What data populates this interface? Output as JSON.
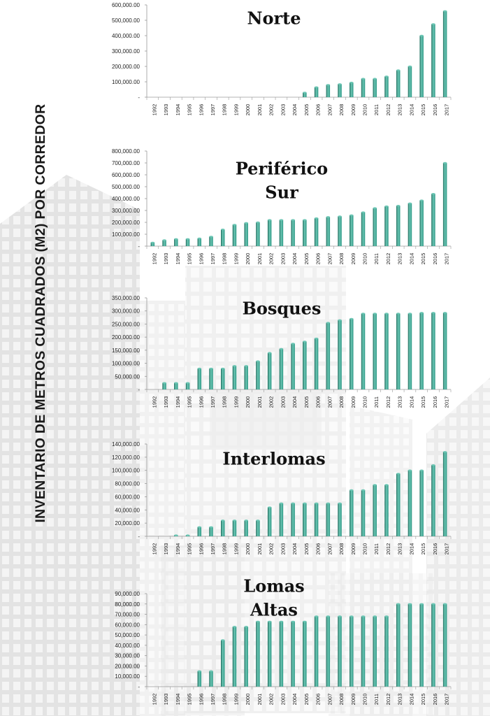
{
  "page": {
    "title": "INVENTARIO DE METROS CUADRADOS (M2) POR CORREDOR"
  },
  "colors": {
    "bar": "#2f9986",
    "bar_highlight": "#6cc6b4",
    "bar_shadow": "#1d6b5c",
    "axis": "#9a9a9a",
    "text": "#1a1a1a"
  },
  "chart_data": [
    {
      "type": "bar",
      "title": [
        "Norte"
      ],
      "categories": [
        "1992",
        "1993",
        "1994",
        "1995",
        "1996",
        "1997",
        "1998",
        "1999",
        "2000",
        "2001",
        "2002",
        "2003",
        "2004",
        "2005",
        "2006",
        "2007",
        "2008",
        "2009",
        "2010",
        "2011",
        "2012",
        "2013",
        "2014",
        "2015",
        "2016",
        "2017"
      ],
      "values": [
        0,
        0,
        0,
        0,
        0,
        0,
        0,
        0,
        0,
        0,
        0,
        0,
        0,
        30000,
        65000,
        80000,
        85000,
        95000,
        120000,
        120000,
        135000,
        175000,
        200000,
        400000,
        475000,
        560000
      ],
      "yticks": [
        0,
        100000,
        200000,
        300000,
        400000,
        500000,
        600000
      ],
      "ytick_labels": [
        "-",
        "100,000.00",
        "200,000.00",
        "300,000.00",
        "400,000.00",
        "500,000.00",
        "600,000.00"
      ],
      "ylim": [
        0,
        600000
      ],
      "grid": false,
      "legend": "none"
    },
    {
      "type": "bar",
      "title": [
        "Periférico",
        "Sur"
      ],
      "categories": [
        "1992",
        "1993",
        "1994",
        "1995",
        "1996",
        "1997",
        "1998",
        "1999",
        "2000",
        "2001",
        "2002",
        "2003",
        "2004",
        "2005",
        "2006",
        "2007",
        "2008",
        "2009",
        "2010",
        "2011",
        "2012",
        "2013",
        "2014",
        "2015",
        "2016",
        "2017"
      ],
      "values": [
        30000,
        50000,
        60000,
        60000,
        65000,
        80000,
        140000,
        180000,
        195000,
        200000,
        220000,
        220000,
        220000,
        220000,
        235000,
        245000,
        250000,
        260000,
        285000,
        320000,
        335000,
        340000,
        360000,
        385000,
        440000,
        700000
      ],
      "yticks": [
        0,
        100000,
        200000,
        300000,
        400000,
        500000,
        600000,
        700000,
        800000
      ],
      "ytick_labels": [
        "-",
        "100,000.00",
        "200,000.00",
        "300,000.00",
        "400,000.00",
        "500,000.00",
        "600,000.00",
        "700,000.00",
        "800,000.00"
      ],
      "ylim": [
        0,
        800000
      ],
      "grid": false,
      "legend": "none"
    },
    {
      "type": "bar",
      "title": [
        "Bosques"
      ],
      "categories": [
        "1992",
        "1993",
        "1994",
        "1995",
        "1996",
        "1997",
        "1998",
        "1999",
        "2000",
        "2001",
        "2002",
        "2003",
        "2004",
        "2005",
        "2006",
        "2007",
        "2008",
        "2009",
        "2010",
        "2011",
        "2012",
        "2013",
        "2014",
        "2015",
        "2016",
        "2017"
      ],
      "values": [
        0,
        25000,
        25000,
        25000,
        80000,
        80000,
        80000,
        90000,
        90000,
        108000,
        140000,
        155000,
        175000,
        183000,
        195000,
        255000,
        265000,
        270000,
        290000,
        290000,
        290000,
        290000,
        290000,
        293000,
        293000,
        293000
      ],
      "yticks": [
        0,
        50000,
        100000,
        150000,
        200000,
        250000,
        300000,
        350000
      ],
      "ytick_labels": [
        "-",
        "50,000.00",
        "100,000.00",
        "150,000.00",
        "200,000.00",
        "250,000.00",
        "300,000.00",
        "350,000.00"
      ],
      "ylim": [
        0,
        350000
      ],
      "grid": false,
      "legend": "none"
    },
    {
      "type": "bar",
      "title": [
        "Interlomas"
      ],
      "categories": [
        "1992",
        "1993",
        "1994",
        "1995",
        "1996",
        "1997",
        "1998",
        "1999",
        "2000",
        "2001",
        "2002",
        "2003",
        "2004",
        "2005",
        "2006",
        "2007",
        "2008",
        "2009",
        "2010",
        "2011",
        "2012",
        "2013",
        "2014",
        "2015",
        "2016",
        "2017"
      ],
      "values": [
        0,
        0,
        1500,
        1500,
        14000,
        14000,
        24000,
        24000,
        24000,
        24000,
        44000,
        50000,
        50000,
        50000,
        50000,
        50000,
        50000,
        70000,
        70000,
        78000,
        78000,
        95000,
        100000,
        100000,
        108000,
        128000
      ],
      "yticks": [
        0,
        20000,
        40000,
        60000,
        80000,
        100000,
        120000,
        140000
      ],
      "ytick_labels": [
        "-",
        "20,000.00",
        "40,000.00",
        "60,000.00",
        "80,000.00",
        "100,000.00",
        "120,000.00",
        "140,000.00"
      ],
      "ylim": [
        0,
        140000
      ],
      "grid": false,
      "legend": "none"
    },
    {
      "type": "bar",
      "title": [
        "Lomas",
        "Altas"
      ],
      "categories": [
        "1992",
        "1993",
        "1994",
        "1995",
        "1996",
        "1997",
        "1998",
        "1999",
        "2000",
        "2001",
        "2002",
        "2003",
        "2004",
        "2005",
        "2006",
        "2007",
        "2008",
        "2009",
        "2010",
        "2011",
        "2012",
        "2013",
        "2014",
        "2015",
        "2016",
        "2017"
      ],
      "values": [
        0,
        0,
        0,
        0,
        15000,
        15000,
        45000,
        58000,
        58000,
        63000,
        63000,
        63000,
        63000,
        63000,
        68000,
        68000,
        68000,
        68000,
        68000,
        68000,
        68000,
        80000,
        80000,
        80000,
        80000,
        80000
      ],
      "yticks": [
        0,
        10000,
        20000,
        30000,
        40000,
        50000,
        60000,
        70000,
        80000,
        90000
      ],
      "ytick_labels": [
        "-",
        "10,000.00",
        "20,000.00",
        "30,000.00",
        "40,000.00",
        "50,000.00",
        "60,000.00",
        "70,000.00",
        "80,000.00",
        "90,000.00"
      ],
      "ylim": [
        0,
        90000
      ],
      "grid": false,
      "legend": "none"
    }
  ]
}
